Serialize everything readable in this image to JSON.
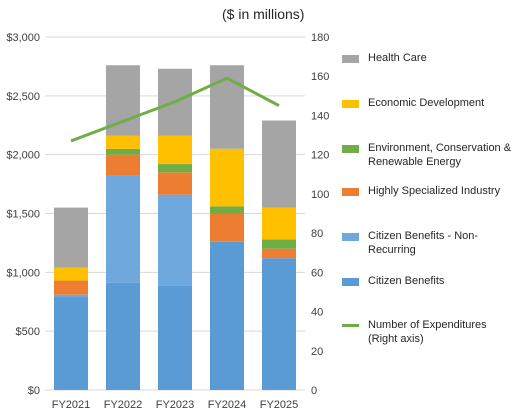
{
  "units_label": "($ in millions)",
  "chart_data": {
    "type": "bar",
    "stacked": true,
    "categories": [
      "FY2021",
      "FY2022",
      "FY2023",
      "FY2024",
      "FY2025"
    ],
    "left_axis": {
      "min": 0,
      "max": 3000,
      "step": 500,
      "tick_labels": [
        "$0",
        "$500",
        "$1,000",
        "$1,500",
        "$2,000",
        "$2,500",
        "$3,000"
      ]
    },
    "right_axis": {
      "min": 0,
      "max": 180,
      "step": 20,
      "tick_labels": [
        "0",
        "20",
        "40",
        "60",
        "80",
        "100",
        "120",
        "140",
        "160",
        "180"
      ]
    },
    "grid": true,
    "legend_position": "right",
    "series": [
      {
        "name": "Citizen Benefits",
        "color": "#5B9BD5",
        "values": [
          790,
          910,
          890,
          1260,
          1120
        ]
      },
      {
        "name": "Citizen Benefits - Non-Recurring",
        "color": "#6FA8DC",
        "values": [
          20,
          910,
          770,
          0,
          0
        ]
      },
      {
        "name": "Highly Specialized Industry",
        "color": "#ED7D31",
        "values": [
          120,
          180,
          190,
          240,
          80
        ]
      },
      {
        "name": "Environment, Conservation & Renewable Energy",
        "color": "#70AD47",
        "values": [
          0,
          50,
          70,
          60,
          80
        ]
      },
      {
        "name": "Economic Development",
        "color": "#FFC000",
        "values": [
          110,
          110,
          240,
          490,
          270
        ]
      },
      {
        "name": "Health Care",
        "color": "#A5A5A5",
        "values": [
          510,
          600,
          570,
          710,
          740
        ]
      }
    ],
    "line_series": {
      "name": "Number of Expenditures (Right axis)",
      "axis": "right",
      "color": "#70AD47",
      "values": [
        127,
        137,
        147,
        159,
        145
      ]
    }
  }
}
